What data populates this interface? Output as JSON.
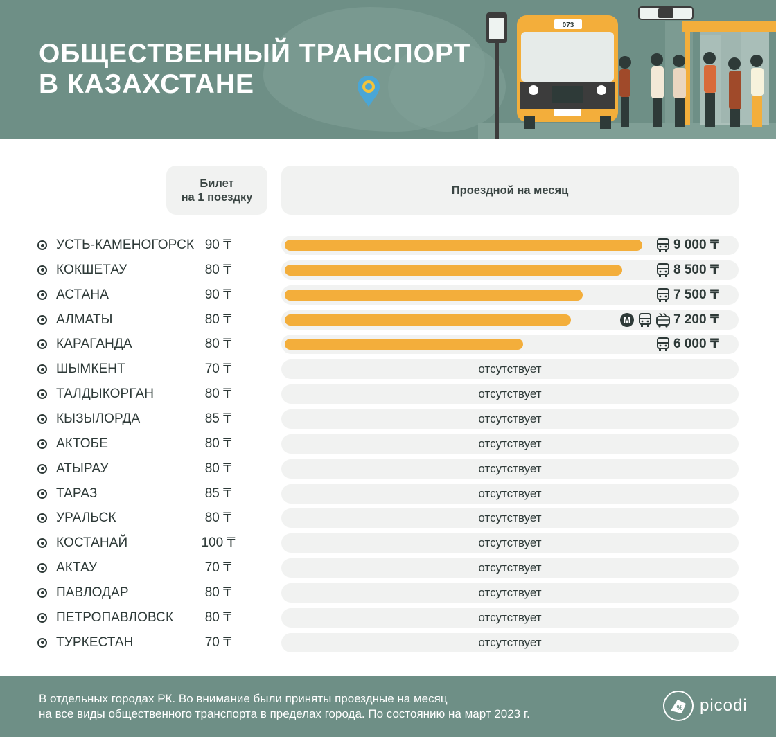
{
  "title": {
    "line1": "ОБЩЕСТВЕННЫЙ ТРАНСПОРТ",
    "line2": "В КАЗАХСТАНЕ"
  },
  "illustration": {
    "bus_number": "073"
  },
  "headers": {
    "ticket_line1": "Билет",
    "ticket_line2": "на 1 поездку",
    "monthly": "Проездной на месяц"
  },
  "colors": {
    "header_bg": "#6e8f86",
    "bar": "#f3ae3b",
    "track": "#f1f2f1",
    "text": "#2e3a38"
  },
  "chart_data": {
    "type": "bar",
    "orientation": "horizontal",
    "currency": "₸",
    "absent_label": "отсутствует",
    "rows": [
      {
        "city": "УСТЬ-КАМЕНОГОРСК",
        "ticket": "90 ₸",
        "monthly": 9000,
        "monthly_text": "9 000 ₸",
        "icons": [
          "bus-icon"
        ]
      },
      {
        "city": "КОКШЕТАУ",
        "ticket": "80 ₸",
        "monthly": 8500,
        "monthly_text": "8 500 ₸",
        "icons": [
          "bus-icon"
        ]
      },
      {
        "city": "АСТАНА",
        "ticket": "90 ₸",
        "monthly": 7500,
        "monthly_text": "7 500 ₸",
        "icons": [
          "bus-icon"
        ]
      },
      {
        "city": "АЛМАТЫ",
        "ticket": "80 ₸",
        "monthly": 7200,
        "monthly_text": "7 200 ₸",
        "icons": [
          "metro-icon",
          "bus-icon",
          "trolleybus-icon"
        ]
      },
      {
        "city": "КАРАГАНДА",
        "ticket": "80 ₸",
        "monthly": 6000,
        "monthly_text": "6 000 ₸",
        "icons": [
          "bus-icon"
        ]
      },
      {
        "city": "ШЫМКЕНТ",
        "ticket": "70 ₸",
        "monthly": null
      },
      {
        "city": "ТАЛДЫКОРГАН",
        "ticket": "80 ₸",
        "monthly": null
      },
      {
        "city": "КЫЗЫЛОРДА",
        "ticket": "85 ₸",
        "monthly": null
      },
      {
        "city": "АКТОБЕ",
        "ticket": "80 ₸",
        "monthly": null
      },
      {
        "city": "АТЫРАУ",
        "ticket": "80 ₸",
        "monthly": null
      },
      {
        "city": "ТАРАЗ",
        "ticket": "85 ₸",
        "monthly": null
      },
      {
        "city": "УРАЛЬСК",
        "ticket": "80 ₸",
        "monthly": null
      },
      {
        "city": "КОСТАНАЙ",
        "ticket": "100 ₸",
        "monthly": null
      },
      {
        "city": "АКТАУ",
        "ticket": "70 ₸",
        "monthly": null
      },
      {
        "city": "ПАВЛОДАР",
        "ticket": "80 ₸",
        "monthly": null
      },
      {
        "city": "ПЕТРОПАВЛОВСК",
        "ticket": "80 ₸",
        "monthly": null
      },
      {
        "city": "ТУРКЕСТАН",
        "ticket": "70 ₸",
        "monthly": null
      }
    ]
  },
  "footer": {
    "line1": "В отдельных городах РК. Во внимание были приняты проездные на месяц",
    "line2": "на все виды общественного транспорта в пределах города. По состоянию на март 2023 г.",
    "brand": "picodi"
  }
}
